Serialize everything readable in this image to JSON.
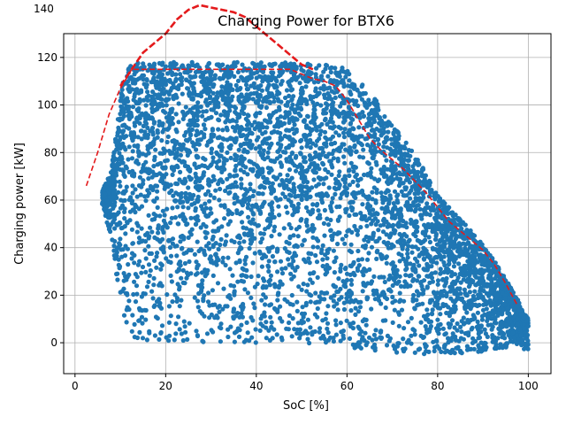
{
  "chart_data": {
    "type": "scatter",
    "title": "Charging Power for BTX6",
    "xlabel": "SoC [%]",
    "ylabel": "Charging power [kW]",
    "xlim": [
      -2.5,
      105
    ],
    "ylim": [
      -13,
      130
    ],
    "xticks": [
      "0",
      "20",
      "40",
      "60",
      "80",
      "100"
    ],
    "yticks": [
      "0",
      "20",
      "40",
      "60",
      "80",
      "100",
      "120"
    ],
    "clipped_tick_label": "140",
    "grid": true,
    "colors": {
      "scatter": "#1f77b4",
      "line": "#e41a1c"
    },
    "series": [
      {
        "type": "scatter",
        "envelope_upper": [
          [
            6,
            64
          ],
          [
            8,
            72
          ],
          [
            10,
            103
          ],
          [
            11,
            116
          ],
          [
            12,
            118
          ],
          [
            20,
            118
          ],
          [
            40,
            118
          ],
          [
            50,
            118
          ],
          [
            60,
            116
          ],
          [
            62,
            112
          ],
          [
            66,
            103
          ],
          [
            70,
            92
          ],
          [
            74,
            82
          ],
          [
            78,
            70
          ],
          [
            80,
            62
          ],
          [
            85,
            52
          ],
          [
            88,
            46
          ],
          [
            92,
            36
          ],
          [
            95,
            27
          ],
          [
            98,
            17
          ],
          [
            100,
            10
          ]
        ],
        "envelope_lower": [
          [
            6,
            58
          ],
          [
            8,
            44
          ],
          [
            9,
            30
          ],
          [
            10,
            20
          ],
          [
            11,
            8
          ],
          [
            12,
            2
          ],
          [
            20,
            0
          ],
          [
            40,
            0
          ],
          [
            50,
            0
          ],
          [
            60,
            -2
          ],
          [
            70,
            -4
          ],
          [
            80,
            -5
          ],
          [
            90,
            -4
          ],
          [
            95,
            -2
          ],
          [
            100,
            -3
          ]
        ]
      },
      {
        "type": "line",
        "style": "dashed",
        "x": [
          2.5,
          5,
          7.5,
          10,
          12.5,
          15,
          17.5,
          20,
          22.5,
          25,
          27.5,
          30,
          32.5,
          35,
          37.5,
          40,
          42.5,
          45,
          47.5,
          50,
          52.5,
          55,
          57.5,
          60,
          62.5,
          65,
          67.5,
          70,
          72.5,
          75,
          77.5,
          80,
          82.5,
          85,
          87.5,
          90,
          92.5,
          95,
          97.5
        ],
        "y": [
          66,
          80,
          96,
          107,
          115,
          115,
          115,
          115,
          115,
          115,
          115,
          115,
          115,
          115,
          115,
          115,
          115,
          115,
          115,
          113,
          111,
          110,
          108,
          102,
          94,
          86,
          81,
          77,
          73,
          68,
          63,
          57,
          51,
          47,
          43,
          39,
          33,
          25,
          16
        ]
      },
      {
        "type": "line",
        "style": "dashed",
        "x": [
          10,
          15,
          20,
          22.5,
          25,
          27.5,
          30,
          32.5,
          35,
          37.5,
          40,
          42.5,
          45,
          47.5,
          50,
          52.5
        ],
        "y": [
          108,
          122,
          130,
          136,
          140,
          142,
          141,
          140,
          139,
          137,
          133,
          129,
          125,
          121,
          117,
          115
        ]
      }
    ]
  }
}
